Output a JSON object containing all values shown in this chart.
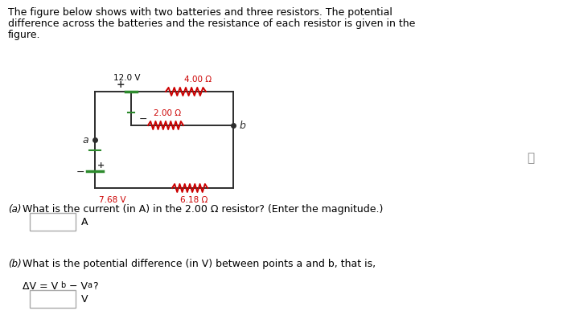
{
  "bg_color": "#ffffff",
  "text_color": "#000000",
  "wire_color": "#2d2d2d",
  "battery_color": "#2d8b2d",
  "resistor_color": "#cc0000",
  "label_color_red": "#cc0000",
  "battery1_voltage": "12.0 V",
  "battery2_voltage": "7.68 V",
  "resistor1": "4.00 Ω",
  "resistor2": "2.00 Ω",
  "resistor3": "6.18 Ω",
  "point_a": "a",
  "point_b": "b",
  "line1": "The figure below shows with two batteries and three resistors. The potential",
  "line2": "difference across the batteries and the resistance of each resistor is given in the",
  "line3": "figure.",
  "qa_label": "(a)",
  "qa_text": "What is the current (in A) in the 2.00 Ω resistor? (Enter the magnitude.)",
  "qa_unit": "A",
  "qb_label": "(b)",
  "qb_text": "What is the potential difference (in V) between points a and b, that is,",
  "qb_sub": "ΔV = V",
  "qb_sub2": "b",
  "qb_sub3": " − V",
  "qb_sub4": "a",
  "qb_sub5": "?",
  "qb_unit": "V"
}
